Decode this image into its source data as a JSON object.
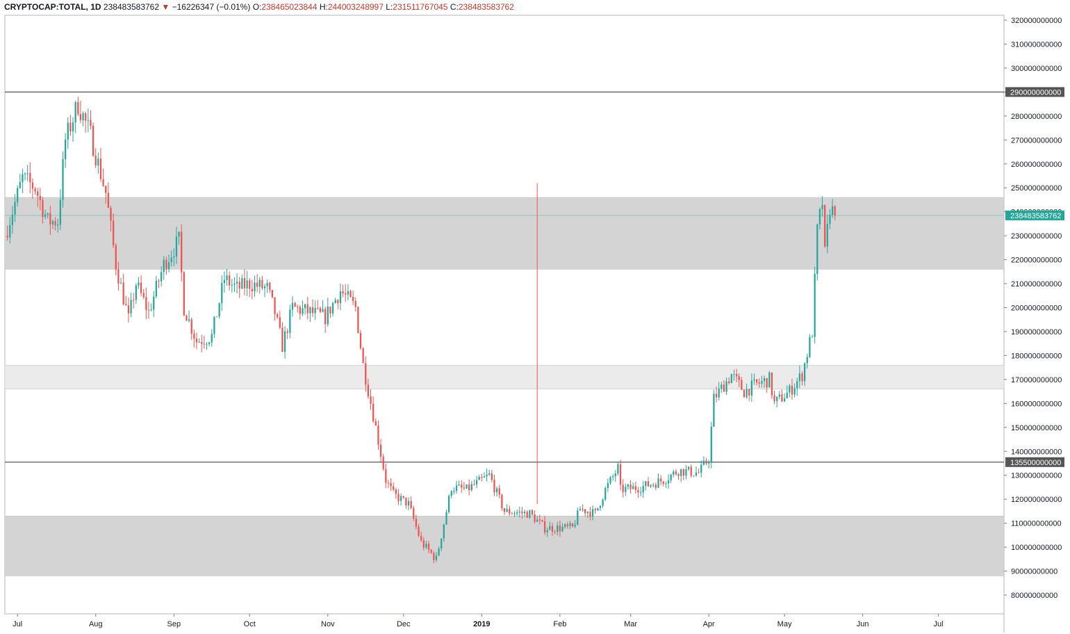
{
  "header": {
    "symbol": "CRYPTOCAP:TOTAL, 1D",
    "last": "238483583762",
    "change": "−16226347 (−0.01%)",
    "o_label": "O:",
    "o_value": "238465023844",
    "h_label": "H:",
    "h_value": "244003248997",
    "l_label": "L:",
    "l_value": "231511767045",
    "c_label": "C:",
    "c_value": "238483583762"
  },
  "colors": {
    "up": "#26a69a",
    "down": "#ef5350",
    "zone_dark": "#d4d4d4",
    "zone_light": "#ebebeb",
    "last_price_badge": "#26a69a",
    "level_badge": "#555555"
  },
  "chart_data": {
    "type": "candlestick",
    "title": "",
    "ylim": [
      74000000000,
      322000000000
    ],
    "y_ticks": [
      "320000000000",
      "310000000000",
      "300000000000",
      "290000000000",
      "280000000000",
      "270000000000",
      "260000000000",
      "250000000000",
      "240000000000",
      "230000000000",
      "220000000000",
      "210000000000",
      "200000000000",
      "190000000000",
      "180000000000",
      "170000000000",
      "160000000000",
      "150000000000",
      "140000000000",
      "130000000000",
      "120000000000",
      "110000000000",
      "100000000000",
      "90000000000",
      "80000000000"
    ],
    "x_ticks": [
      {
        "label": "Jul",
        "date": "2018-07-01"
      },
      {
        "label": "Aug",
        "date": "2018-08-01"
      },
      {
        "label": "Sep",
        "date": "2018-09-01"
      },
      {
        "label": "Oct",
        "date": "2018-10-01"
      },
      {
        "label": "Nov",
        "date": "2018-11-01"
      },
      {
        "label": "Dec",
        "date": "2018-12-01"
      },
      {
        "label": "2019",
        "date": "2019-01-01",
        "bold": true
      },
      {
        "label": "Feb",
        "date": "2019-02-01"
      },
      {
        "label": "Mar",
        "date": "2019-03-01"
      },
      {
        "label": "Apr",
        "date": "2019-04-01"
      },
      {
        "label": "May",
        "date": "2019-05-01"
      },
      {
        "label": "Jun",
        "date": "2019-06-01"
      },
      {
        "label": "Jul",
        "date": "2019-07-01"
      }
    ],
    "x_range": [
      "2018-06-26",
      "2019-07-27"
    ],
    "horizontal_levels": [
      {
        "value": 290000000000,
        "label": "290000000000"
      },
      {
        "value": 135500000000,
        "label": "135500000000"
      }
    ],
    "last_price": {
      "value": 238483583762,
      "label": "238483583762"
    },
    "zones": [
      {
        "from": 216000000000,
        "to": 246000000000,
        "shade": "dark"
      },
      {
        "from": 166000000000,
        "to": 176000000000,
        "shade": "light"
      },
      {
        "from": 88000000000,
        "to": 113000000000,
        "shade": "dark"
      }
    ],
    "vertical_line": {
      "date": "2019-01-23",
      "from": 118000000000,
      "to": 252000000000
    },
    "anchors": [
      [
        "2018-06-26",
        230
      ],
      [
        "2018-07-03",
        254
      ],
      [
        "2018-07-08",
        250
      ],
      [
        "2018-07-13",
        236
      ],
      [
        "2018-07-17",
        236
      ],
      [
        "2018-07-20",
        270
      ],
      [
        "2018-07-25",
        285
      ],
      [
        "2018-07-30",
        272
      ],
      [
        "2018-08-05",
        248
      ],
      [
        "2018-08-09",
        218
      ],
      [
        "2018-08-14",
        195
      ],
      [
        "2018-08-17",
        210
      ],
      [
        "2018-08-22",
        198
      ],
      [
        "2018-08-28",
        218
      ],
      [
        "2018-09-03",
        228
      ],
      [
        "2018-09-05",
        200
      ],
      [
        "2018-09-10",
        186
      ],
      [
        "2018-09-16",
        188
      ],
      [
        "2018-09-21",
        212
      ],
      [
        "2018-09-26",
        208
      ],
      [
        "2018-10-01",
        210
      ],
      [
        "2018-10-08",
        208
      ],
      [
        "2018-10-11",
        198
      ],
      [
        "2018-10-14",
        184
      ],
      [
        "2018-10-18",
        200
      ],
      [
        "2018-10-25",
        198
      ],
      [
        "2018-10-31",
        196
      ],
      [
        "2018-11-06",
        207
      ],
      [
        "2018-11-12",
        200
      ],
      [
        "2018-11-15",
        176
      ],
      [
        "2018-11-20",
        150
      ],
      [
        "2018-11-24",
        128
      ],
      [
        "2018-11-27",
        122
      ],
      [
        "2018-12-03",
        118
      ],
      [
        "2018-12-08",
        102
      ],
      [
        "2018-12-14",
        95
      ],
      [
        "2018-12-17",
        110
      ],
      [
        "2018-12-20",
        125
      ],
      [
        "2018-12-26",
        124
      ],
      [
        "2019-01-04",
        130
      ],
      [
        "2019-01-10",
        115
      ],
      [
        "2019-01-20",
        114
      ],
      [
        "2019-01-26",
        108
      ],
      [
        "2019-02-06",
        108
      ],
      [
        "2019-02-09",
        116
      ],
      [
        "2019-02-15",
        114
      ],
      [
        "2019-02-19",
        124
      ],
      [
        "2019-02-24",
        133
      ],
      [
        "2019-02-25",
        124
      ],
      [
        "2019-03-05",
        125
      ],
      [
        "2019-03-14",
        128
      ],
      [
        "2019-03-20",
        132
      ],
      [
        "2019-03-28",
        131
      ],
      [
        "2019-04-01",
        137
      ],
      [
        "2019-04-03",
        162
      ],
      [
        "2019-04-10",
        172
      ],
      [
        "2019-04-15",
        165
      ],
      [
        "2019-04-20",
        168
      ],
      [
        "2019-04-25",
        170
      ],
      [
        "2019-04-27",
        160
      ],
      [
        "2019-05-03",
        165
      ],
      [
        "2019-05-08",
        172
      ],
      [
        "2019-05-12",
        190
      ],
      [
        "2019-05-14",
        232
      ],
      [
        "2019-05-16",
        244
      ],
      [
        "2019-05-17",
        222
      ],
      [
        "2019-05-19",
        242
      ],
      [
        "2019-05-21",
        238.5
      ]
    ]
  }
}
